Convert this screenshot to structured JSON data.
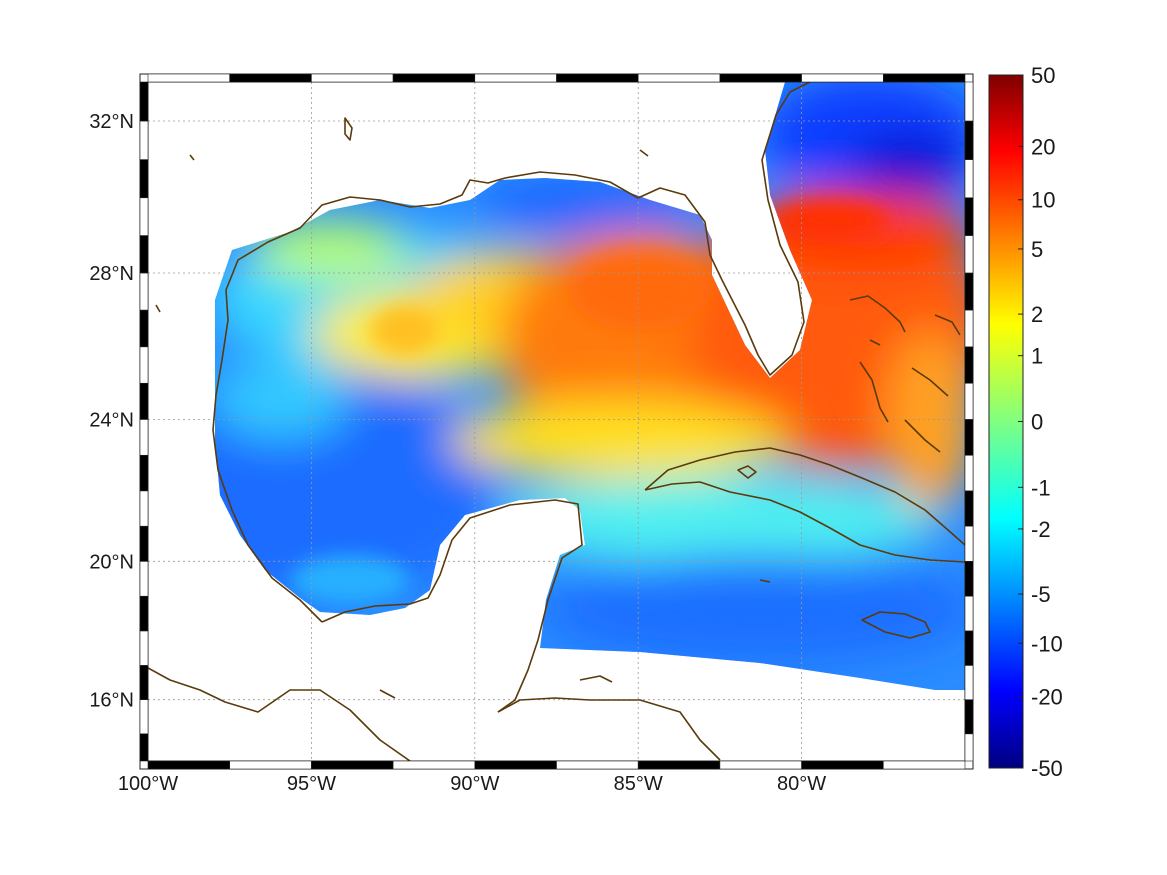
{
  "map": {
    "projection": "mercator",
    "lon_range": [
      -100,
      -75
    ],
    "lat_range": [
      14.2,
      33
    ],
    "colormap": "jet",
    "gridlines": true,
    "land_fill": "white",
    "coastline_color": "#5b3a0c",
    "lon_ticks": [
      {
        "value": -100,
        "label": "100°W"
      },
      {
        "value": -95,
        "label": "95°W"
      },
      {
        "value": -90,
        "label": "90°W"
      },
      {
        "value": -85,
        "label": "85°W"
      },
      {
        "value": -80,
        "label": "80°W"
      }
    ],
    "lat_ticks": [
      {
        "value": 32,
        "label": "32°N"
      },
      {
        "value": 28,
        "label": "28°N"
      },
      {
        "value": 24,
        "label": "24°N"
      },
      {
        "value": 20,
        "label": "20°N"
      },
      {
        "value": 16,
        "label": "16°N"
      }
    ]
  },
  "colorbar": {
    "ticks": [
      {
        "value": 50,
        "label": "50"
      },
      {
        "value": 20,
        "label": "20"
      },
      {
        "value": 10,
        "label": "10"
      },
      {
        "value": 5,
        "label": "5"
      },
      {
        "value": 2,
        "label": "2"
      },
      {
        "value": 1,
        "label": "1"
      },
      {
        "value": 0,
        "label": "0"
      },
      {
        "value": -1,
        "label": "-1"
      },
      {
        "value": -2,
        "label": "-2"
      },
      {
        "value": -5,
        "label": "-5"
      },
      {
        "value": -10,
        "label": "-10"
      },
      {
        "value": -20,
        "label": "-20"
      },
      {
        "value": -50,
        "label": "-50"
      }
    ]
  }
}
